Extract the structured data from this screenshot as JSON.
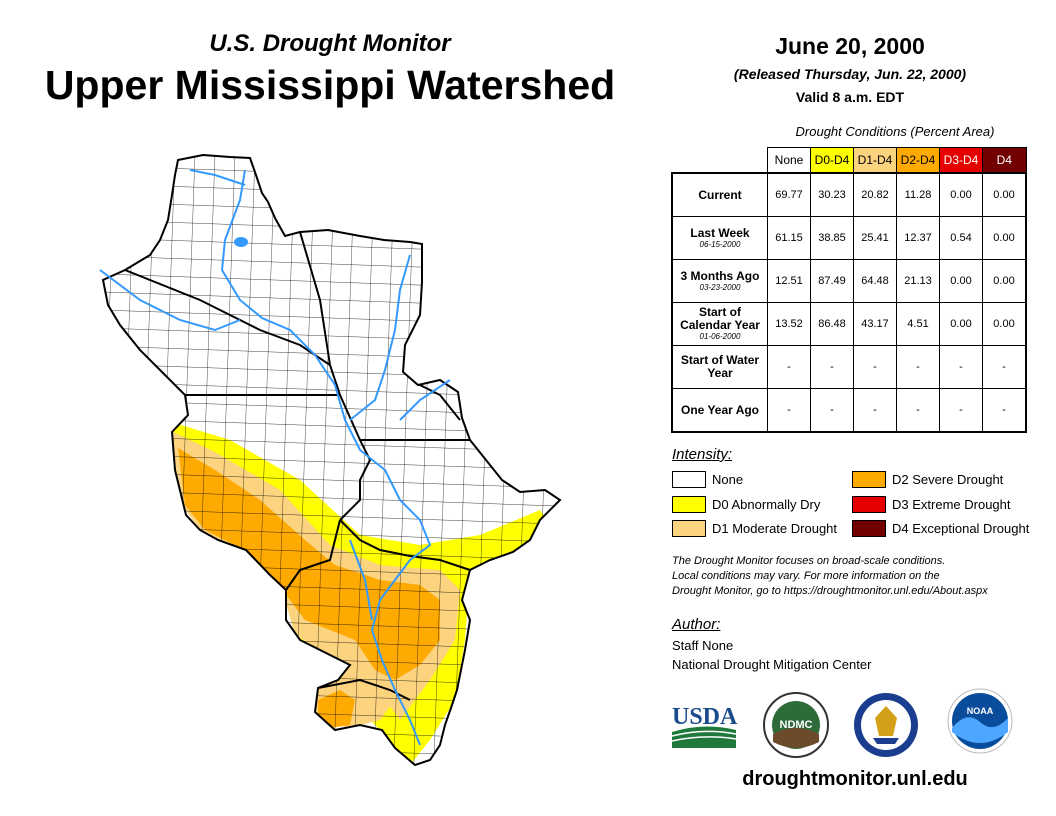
{
  "header": {
    "program": "U.S. Drought Monitor",
    "region": "Upper Mississippi Watershed",
    "date": "June 20, 2000",
    "released": "(Released Thursday, Jun. 22, 2000)",
    "valid": "Valid 8 a.m. EDT"
  },
  "table": {
    "caption": "Drought Conditions (Percent Area)",
    "columns": [
      {
        "label": "None",
        "bg": "#ffffff",
        "fg": "#000000"
      },
      {
        "label": "D0-D4",
        "bg": "#ffff00",
        "fg": "#000000"
      },
      {
        "label": "D1-D4",
        "bg": "#fcd37f",
        "fg": "#000000"
      },
      {
        "label": "D2-D4",
        "bg": "#ffaa00",
        "fg": "#000000"
      },
      {
        "label": "D3-D4",
        "bg": "#e60000",
        "fg": "#ffffff"
      },
      {
        "label": "D4",
        "bg": "#730000",
        "fg": "#ffffff"
      }
    ],
    "rows": [
      {
        "label": "Current",
        "sub": "",
        "values": [
          "69.77",
          "30.23",
          "20.82",
          "11.28",
          "0.00",
          "0.00"
        ]
      },
      {
        "label": "Last Week",
        "sub": "06-15-2000",
        "values": [
          "61.15",
          "38.85",
          "25.41",
          "12.37",
          "0.54",
          "0.00"
        ]
      },
      {
        "label": "3 Months Ago",
        "sub": "03-23-2000",
        "values": [
          "12.51",
          "87.49",
          "64.48",
          "21.13",
          "0.00",
          "0.00"
        ]
      },
      {
        "label": "Start of Calendar Year",
        "sub": "01-06-2000",
        "values": [
          "13.52",
          "86.48",
          "43.17",
          "4.51",
          "0.00",
          "0.00"
        ]
      },
      {
        "label": "Start of Water Year",
        "sub": "",
        "values": [
          "-",
          "-",
          "-",
          "-",
          "-",
          "-"
        ]
      },
      {
        "label": "One Year Ago",
        "sub": "",
        "values": [
          "-",
          "-",
          "-",
          "-",
          "-",
          "-"
        ]
      }
    ]
  },
  "legend": {
    "title": "Intensity:",
    "items": [
      {
        "label": "None",
        "color": "#ffffff"
      },
      {
        "label": "D0 Abnormally Dry",
        "color": "#ffff00"
      },
      {
        "label": "D1 Moderate Drought",
        "color": "#fcd37f"
      },
      {
        "label": "D2 Severe Drought",
        "color": "#ffaa00"
      },
      {
        "label": "D3 Extreme Drought",
        "color": "#e60000"
      },
      {
        "label": "D4 Exceptional Drought",
        "color": "#730000"
      }
    ]
  },
  "note": {
    "line1": "The Drought Monitor focuses on broad-scale conditions.",
    "line2": "Local conditions may vary. For more information on the",
    "line3": "Drought Monitor, go to https://droughtmonitor.unl.edu/About.aspx"
  },
  "author": {
    "title": "Author:",
    "name": "Staff None",
    "org": "National Drought Mitigation Center"
  },
  "logos": {
    "usda": "USDA",
    "ndmc": "NDMC",
    "noaa": "NOAA"
  },
  "url": "droughtmonitor.unl.edu",
  "colors": {
    "none": "#ffffff",
    "d0": "#ffff00",
    "d1": "#fcd37f",
    "d2": "#ffaa00",
    "water": "#3399ff"
  }
}
